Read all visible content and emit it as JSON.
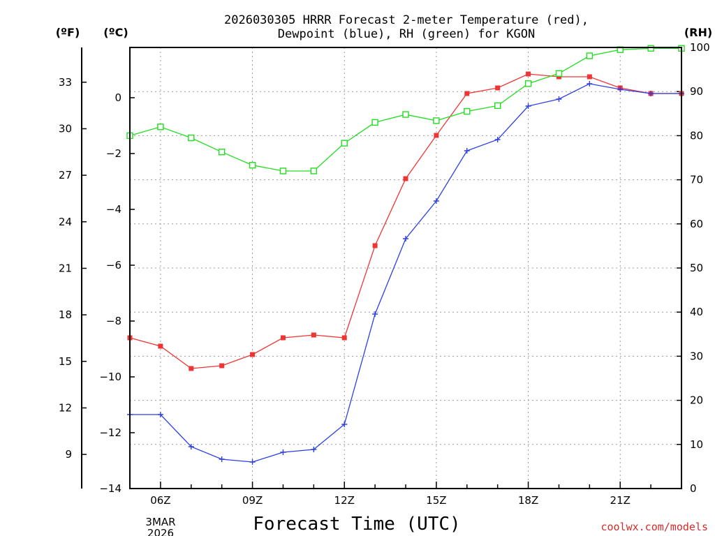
{
  "chart_data": {
    "type": "line",
    "title_line1": "2026030305 HRRR Forecast 2-meter Temperature (red),",
    "title_line2": "Dewpoint (blue), RH (green) for KGON",
    "xlabel": "Forecast Time (UTC)",
    "credit": "coolwx.com/models",
    "date_label": [
      "3MAR",
      "2026"
    ],
    "units": {
      "fahrenheit": "(ºF)",
      "celsius": "(ºC)",
      "rh": "(RH)"
    },
    "x_range": [
      5,
      23
    ],
    "x_ticks": [
      {
        "hour": 6,
        "label": "06Z"
      },
      {
        "hour": 9,
        "label": "09Z"
      },
      {
        "hour": 12,
        "label": "12Z"
      },
      {
        "hour": 15,
        "label": "15Z"
      },
      {
        "hour": 18,
        "label": "18Z"
      },
      {
        "hour": 21,
        "label": "21Z"
      }
    ],
    "celsius_axis": {
      "range": [
        -14,
        1.8
      ],
      "ticks": [
        0,
        -2,
        -4,
        -6,
        -8,
        -10,
        -12,
        -14
      ],
      "tick_labels": [
        "0",
        "−2",
        "−4",
        "−6",
        "−8",
        "−10",
        "−12",
        "−14"
      ]
    },
    "fahrenheit_ticks": [
      33,
      30,
      27,
      24,
      21,
      18,
      15,
      12,
      9
    ],
    "rh_axis": {
      "range": [
        0,
        100
      ],
      "ticks": [
        100,
        90,
        80,
        70,
        60,
        50,
        40,
        30,
        20,
        10,
        0
      ]
    },
    "series": [
      {
        "name": "Temperature",
        "unit": "C",
        "color": "#f03434",
        "marker": "filled-square",
        "x": [
          5,
          6,
          7,
          8,
          9,
          10,
          11,
          12,
          13,
          14,
          15,
          16,
          17,
          18,
          19,
          20,
          21,
          22,
          23
        ],
        "values": [
          -8.6,
          -8.9,
          -9.7,
          -9.6,
          -9.2,
          -8.6,
          -8.5,
          -8.6,
          -5.3,
          -2.9,
          -1.35,
          0.15,
          0.35,
          0.85,
          0.75,
          0.75,
          0.35,
          0.15,
          0.15
        ]
      },
      {
        "name": "Dewpoint",
        "unit": "C",
        "color": "#2b3fe6",
        "marker": "plus",
        "x": [
          5,
          6,
          7,
          8,
          9,
          10,
          11,
          12,
          13,
          14,
          15,
          16,
          17,
          18,
          19,
          20,
          21,
          22,
          23
        ],
        "values": [
          -11.35,
          -11.35,
          -12.5,
          -12.95,
          -13.05,
          -12.7,
          -12.6,
          -11.7,
          -7.75,
          -5.05,
          -3.7,
          -1.9,
          -1.5,
          -0.3,
          -0.05,
          0.5,
          0.3,
          0.15,
          0.15
        ]
      },
      {
        "name": "RH",
        "unit": "%",
        "color": "#22dd22",
        "marker": "open-square",
        "x": [
          5,
          6,
          7,
          8,
          9,
          10,
          11,
          12,
          13,
          14,
          15,
          16,
          17,
          18,
          19,
          20,
          21,
          22,
          23
        ],
        "values": [
          80,
          82,
          79.5,
          76.3,
          73.3,
          72,
          72,
          78.3,
          83,
          84.8,
          83.4,
          85.5,
          86.8,
          91.8,
          94.1,
          98.1,
          99.5,
          99.8,
          99.8
        ]
      }
    ]
  }
}
